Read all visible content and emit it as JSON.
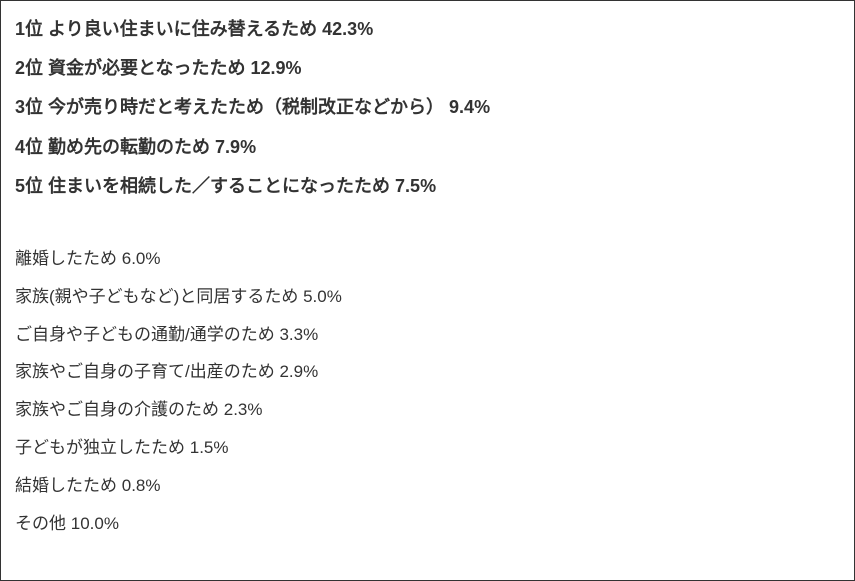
{
  "survey": {
    "ranked_items": [
      {
        "rank": "1位",
        "reason": "より良い住まいに住み替えるため",
        "percentage": "42.3%"
      },
      {
        "rank": "2位",
        "reason": "資金が必要となったため",
        "percentage": "12.9%"
      },
      {
        "rank": "3位",
        "reason": "今が売り時だと考えたため（税制改正などから）",
        "percentage": "9.4%"
      },
      {
        "rank": "4位",
        "reason": "勤め先の転勤のため",
        "percentage": "  7.9%"
      },
      {
        "rank": "5位",
        "reason": "住まいを相続した／することになったため",
        "percentage": "7.5%"
      }
    ],
    "unranked_items": [
      {
        "reason": "離婚したため",
        "percentage": "6.0%"
      },
      {
        "reason": "家族(親や子どもなど)と同居するため",
        "percentage": "5.0%"
      },
      {
        "reason": "ご自身や子どもの通勤/通学のため",
        "percentage": "3.3%"
      },
      {
        "reason": "家族やご自身の子育て/出産のため",
        "percentage": "2.9%"
      },
      {
        "reason": "家族やご自身の介護のため",
        "percentage": "2.3%"
      },
      {
        "reason": "子どもが独立したため",
        "percentage": "1.5%"
      },
      {
        "reason": "結婚したため",
        "percentage": "0.8%"
      },
      {
        "reason": "その他",
        "percentage": "10.0%"
      }
    ],
    "styling": {
      "ranked_font_size": 18,
      "ranked_font_weight": "bold",
      "unranked_font_size": 17,
      "unranked_font_weight": "normal",
      "text_color": "#333333",
      "background_color": "#ffffff",
      "border_color": "#333333",
      "line_spacing": 14
    }
  }
}
